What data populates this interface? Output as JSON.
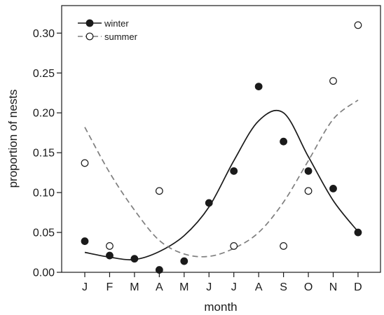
{
  "chart_data": {
    "type": "scatter",
    "title": "",
    "xlabel": "month",
    "ylabel": "proportion of nests",
    "categories": [
      "J",
      "F",
      "M",
      "A",
      "M",
      "J",
      "J",
      "A",
      "S",
      "O",
      "N",
      "D"
    ],
    "ylim": [
      0,
      0.33
    ],
    "yticks": [
      "0.00",
      "0.05",
      "0.10",
      "0.15",
      "0.20",
      "0.25",
      "0.30"
    ],
    "grid": false,
    "legend_position": "top-left",
    "series": [
      {
        "name": "winter",
        "marker": "filled-circle",
        "line_style": "solid",
        "color": "#1a1a1a",
        "points": [
          0.039,
          0.021,
          0.017,
          0.003,
          0.014,
          0.087,
          0.127,
          0.233,
          0.164,
          0.127,
          0.105,
          0.05
        ],
        "fit_curve": [
          0.025,
          0.019,
          0.016,
          0.026,
          0.046,
          0.082,
          0.14,
          0.19,
          0.2,
          0.145,
          0.09,
          0.051
        ]
      },
      {
        "name": "summer",
        "marker": "open-circle",
        "line_style": "dashed",
        "color": "#7f7f7f",
        "points": [
          0.137,
          0.033,
          null,
          0.102,
          null,
          null,
          0.033,
          null,
          0.033,
          0.102,
          0.24,
          0.31
        ],
        "fit_curve": [
          0.182,
          0.125,
          0.078,
          0.04,
          0.023,
          0.02,
          0.03,
          0.05,
          0.088,
          0.14,
          0.192,
          0.216
        ]
      }
    ]
  }
}
